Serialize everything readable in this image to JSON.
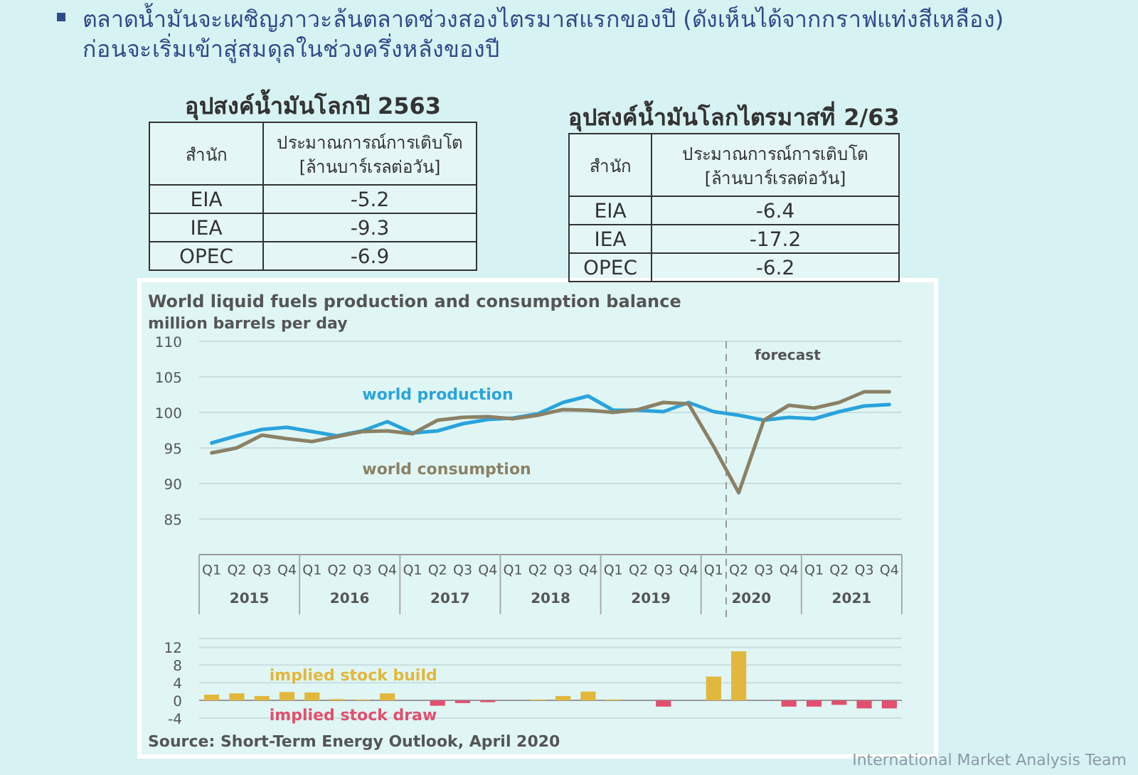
{
  "chart_data": [
    {
      "type": "other",
      "title": "ตลาดน้ำมันจะเผชิญภาวะล้นตลาดช่วงสองไตรมาสแรกของปี (ดังเห็นได้จากกราฟแท่งสีเหลือง) ก่อนจะเริ่มเข้าสู่สมดุลในช่วงครึ่งหลังของปี",
      "annotations": [
        "International Market Analysis Team"
      ]
    },
    {
      "type": "other",
      "title": "อุปสงค์น้ำมันโลกปี 2563",
      "annotations": [
        "สำนัก",
        "ประมาณการณ์การเติบโต\n[ล้านบาร์เรลต่อวัน]",
        "EIA",
        "-5.2",
        "IEA",
        "-9.3",
        "OPEC",
        "-6.9"
      ]
    },
    {
      "type": "other",
      "title": "อุปสงค์น้ำมันโลกไตรมาสที่ 2/63",
      "annotations": [
        "สำนัก",
        "ประมาณการณ์การเติบโต\n[ล้านบาร์เรลต่อวัน]",
        "EIA",
        "-6.4",
        "IEA",
        "-17.2",
        "OPEC",
        "-6.2"
      ]
    },
    {
      "type": "line",
      "title": "World liquid fuels production and consumption balance",
      "ylabel": "million barrels per day",
      "categories": [
        "Q1",
        "Q2",
        "Q3",
        "Q4",
        "Q1",
        "Q2",
        "Q3",
        "Q4",
        "Q1",
        "Q2",
        "Q3",
        "Q4",
        "Q1",
        "Q2",
        "Q3",
        "Q4",
        "Q1",
        "Q2",
        "Q3",
        "Q4",
        "Q1",
        "Q2",
        "Q3",
        "Q4",
        "Q1",
        "Q2",
        "Q3",
        "Q4"
      ],
      "series": [
        {
          "name": "world production",
          "color": "#2aa3dc",
          "values": [
            95.7,
            96.7,
            97.6,
            97.9,
            97.3,
            96.7,
            97.4,
            98.7,
            97.1,
            97.4,
            98.4,
            99.0,
            99.2,
            99.8,
            101.4,
            102.3,
            100.3,
            100.3,
            100.1,
            101.4,
            100.1,
            99.6,
            98.9,
            99.3,
            99.1,
            100.1,
            100.9,
            101.1
          ]
        },
        {
          "name": "world consumption",
          "color": "#8b8165",
          "values": [
            94.3,
            95.0,
            96.8,
            96.3,
            95.9,
            96.6,
            97.3,
            97.4,
            97.0,
            98.9,
            99.3,
            99.4,
            99.1,
            99.6,
            100.4,
            100.3,
            100.0,
            100.4,
            101.4,
            101.2,
            95.2,
            88.7,
            98.9,
            101.0,
            100.6,
            101.4,
            102.9,
            102.9
          ]
        }
      ],
      "ylim": [
        80,
        110
      ],
      "yticks": [
        85,
        90,
        95,
        100,
        105,
        110
      ],
      "grid": "y",
      "annotations": [
        "2015",
        "2016",
        "2017",
        "2018",
        "2019",
        "2020",
        "2021",
        "forecast"
      ]
    },
    {
      "type": "bar",
      "categories": [
        null,
        null,
        null,
        null,
        null,
        null,
        null,
        null,
        null,
        null,
        null,
        null,
        null,
        null,
        null,
        null,
        null,
        null,
        null,
        null,
        null,
        null,
        null,
        null,
        null,
        null,
        null,
        null
      ],
      "series": [
        {
          "name": "implied stock build",
          "color": "#e2b73e",
          "values": [
            1.3,
            1.6,
            1.0,
            1.9,
            1.8,
            0.3,
            0.2,
            1.6,
            null,
            null,
            null,
            null,
            null,
            0.2,
            1.0,
            2.0,
            0.2,
            null,
            null,
            null,
            5.4,
            11.1,
            null,
            null,
            null,
            null,
            null,
            null
          ]
        },
        {
          "name": "implied stock draw",
          "color": "#e0506e",
          "values": [
            null,
            null,
            null,
            null,
            null,
            null,
            null,
            null,
            null,
            -1.2,
            -0.6,
            -0.4,
            null,
            null,
            null,
            null,
            null,
            null,
            -1.4,
            null,
            null,
            null,
            null,
            -1.4,
            -1.4,
            -1.0,
            -1.8,
            -1.8
          ]
        }
      ],
      "ylim": [
        -4,
        14
      ],
      "yticks": [
        -4,
        0,
        4,
        8,
        12
      ],
      "grid": "y",
      "tick_labels": "y",
      "annotations": [
        "Source: Short-Term Energy Outlook, April 2020"
      ]
    }
  ]
}
